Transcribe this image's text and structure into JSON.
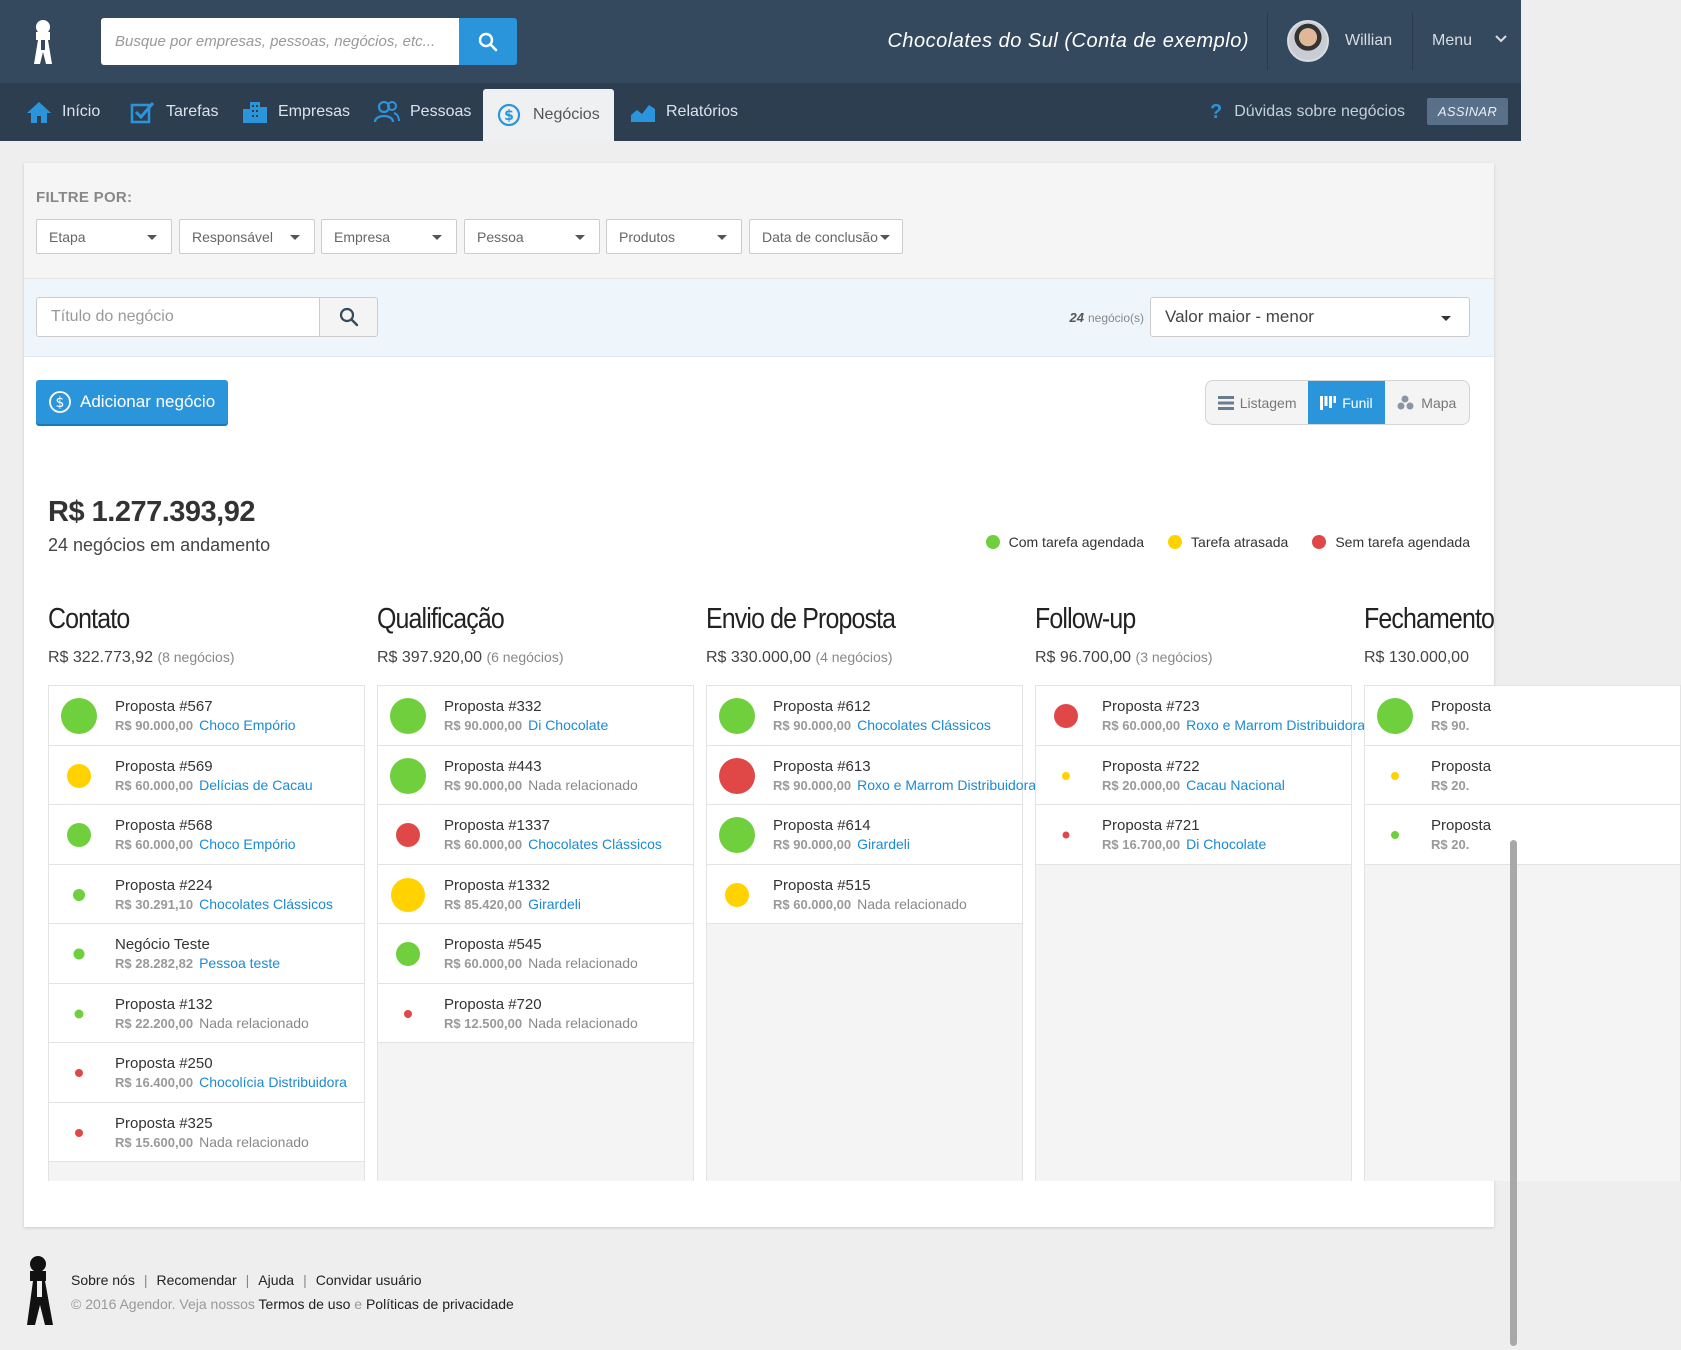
{
  "header": {
    "search_placeholder": "Busque por empresas, pessoas, negócios, etc...",
    "account_name": "Chocolates do Sul (Conta de exemplo)",
    "user_name": "Willian",
    "menu_label": "Menu"
  },
  "nav": {
    "items": [
      {
        "label": "Início",
        "icon": "home-icon"
      },
      {
        "label": "Tarefas",
        "icon": "checkbox-icon"
      },
      {
        "label": "Empresas",
        "icon": "buildings-icon"
      },
      {
        "label": "Pessoas",
        "icon": "people-icon"
      },
      {
        "label": "Negócios",
        "icon": "dollar-icon",
        "active": true
      },
      {
        "label": "Relatórios",
        "icon": "chart-icon"
      }
    ],
    "help_label": "Dúvidas sobre negócios",
    "subscribe_label": "ASSINAR"
  },
  "filters": {
    "title": "FILTRE POR:",
    "items": [
      "Etapa",
      "Responsável",
      "Empresa",
      "Pessoa",
      "Produtos",
      "Data de conclusão"
    ]
  },
  "search": {
    "placeholder": "Título do negócio",
    "count": "24",
    "count_label": "negócio(s)",
    "sort_value": "Valor maior - menor"
  },
  "actions": {
    "add_label": "Adicionar negócio",
    "views": [
      {
        "label": "Listagem",
        "icon": "list-icon",
        "active": false
      },
      {
        "label": "Funil",
        "icon": "funnel-icon",
        "active": true
      },
      {
        "label": "Mapa",
        "icon": "map-icon",
        "active": false
      }
    ]
  },
  "summary": {
    "total": "R$ 1.277.393,92",
    "subtitle": "24 negócios em andamento"
  },
  "legend": [
    {
      "label": "Com tarefa agendada",
      "color": "#6fcf3c"
    },
    {
      "label": "Tarefa atrasada",
      "color": "#ffd200"
    },
    {
      "label": "Sem tarefa agendada",
      "color": "#e04848"
    }
  ],
  "colors": {
    "green": "#6fcf3c",
    "yellow": "#ffd200",
    "red": "#e04848",
    "accent": "#2b95dc"
  },
  "stages": [
    {
      "name": "Contato",
      "value": "R$ 322.773,92",
      "count": "(8 negócios)",
      "deals": [
        {
          "title": "Proposta #567",
          "value": "R$ 90.000,00",
          "related": "Choco Empório",
          "linked": true,
          "status": "green",
          "size": 36
        },
        {
          "title": "Proposta #569",
          "value": "R$ 60.000,00",
          "related": "Delícias de Cacau",
          "linked": true,
          "status": "yellow",
          "size": 24
        },
        {
          "title": "Proposta #568",
          "value": "R$ 60.000,00",
          "related": "Choco Empório",
          "linked": true,
          "status": "green",
          "size": 24
        },
        {
          "title": "Proposta #224",
          "value": "R$ 30.291,10",
          "related": "Chocolates Clássicos",
          "linked": true,
          "status": "green",
          "size": 12
        },
        {
          "title": "Negócio Teste",
          "value": "R$ 28.282,82",
          "related": "Pessoa teste",
          "linked": true,
          "status": "green",
          "size": 11
        },
        {
          "title": "Proposta #132",
          "value": "R$ 22.200,00",
          "related": "Nada relacionado",
          "linked": false,
          "status": "green",
          "size": 9
        },
        {
          "title": "Proposta #250",
          "value": "R$ 16.400,00",
          "related": "Chocolícia Distribuidora",
          "linked": true,
          "status": "red",
          "size": 8
        },
        {
          "title": "Proposta #325",
          "value": "R$ 15.600,00",
          "related": "Nada relacionado",
          "linked": false,
          "status": "red",
          "size": 8
        }
      ]
    },
    {
      "name": "Qualificação",
      "value": "R$ 397.920,00",
      "count": "(6 negócios)",
      "deals": [
        {
          "title": "Proposta #332",
          "value": "R$ 90.000,00",
          "related": "Di Chocolate",
          "linked": true,
          "status": "green",
          "size": 36
        },
        {
          "title": "Proposta #443",
          "value": "R$ 90.000,00",
          "related": "Nada relacionado",
          "linked": false,
          "status": "green",
          "size": 36
        },
        {
          "title": "Proposta #1337",
          "value": "R$ 60.000,00",
          "related": "Chocolates Clássicos",
          "linked": true,
          "status": "red",
          "size": 24
        },
        {
          "title": "Proposta #1332",
          "value": "R$ 85.420,00",
          "related": "Girardeli",
          "linked": true,
          "status": "yellow",
          "size": 34
        },
        {
          "title": "Proposta #545",
          "value": "R$ 60.000,00",
          "related": "Nada relacionado",
          "linked": false,
          "status": "green",
          "size": 24
        },
        {
          "title": "Proposta #720",
          "value": "R$ 12.500,00",
          "related": "Nada relacionado",
          "linked": false,
          "status": "red",
          "size": 8
        }
      ]
    },
    {
      "name": "Envio de Proposta",
      "value": "R$ 330.000,00",
      "count": "(4 negócios)",
      "deals": [
        {
          "title": "Proposta #612",
          "value": "R$ 90.000,00",
          "related": "Chocolates Clássicos",
          "linked": true,
          "status": "green",
          "size": 36
        },
        {
          "title": "Proposta #613",
          "value": "R$ 90.000,00",
          "related": "Roxo e Marrom Distribuidora",
          "linked": true,
          "status": "red",
          "size": 36
        },
        {
          "title": "Proposta #614",
          "value": "R$ 90.000,00",
          "related": "Girardeli",
          "linked": true,
          "status": "green",
          "size": 36
        },
        {
          "title": "Proposta #515",
          "value": "R$ 60.000,00",
          "related": "Nada relacionado",
          "linked": false,
          "status": "yellow",
          "size": 24
        }
      ]
    },
    {
      "name": "Follow-up",
      "value": "R$ 96.700,00",
      "count": "(3 negócios)",
      "deals": [
        {
          "title": "Proposta #723",
          "value": "R$ 60.000,00",
          "related": "Roxo e Marrom Distribuidora",
          "linked": true,
          "status": "red",
          "size": 24
        },
        {
          "title": "Proposta #722",
          "value": "R$ 20.000,00",
          "related": "Cacau Nacional",
          "linked": true,
          "status": "yellow",
          "size": 8
        },
        {
          "title": "Proposta #721",
          "value": "R$ 16.700,00",
          "related": "Di Chocolate",
          "linked": true,
          "status": "red",
          "size": 7
        }
      ]
    },
    {
      "name": "Fechamento",
      "value": "R$ 130.000,00",
      "count": "",
      "deals": [
        {
          "title": "Proposta",
          "value": "R$ 90.",
          "related": "",
          "linked": false,
          "status": "green",
          "size": 36
        },
        {
          "title": "Proposta",
          "value": "R$ 20.",
          "related": "",
          "linked": false,
          "status": "yellow",
          "size": 8
        },
        {
          "title": "Proposta",
          "value": "R$ 20.",
          "related": "",
          "linked": false,
          "status": "green",
          "size": 8
        }
      ]
    }
  ],
  "footer": {
    "links": [
      "Sobre nós",
      "Recomendar",
      "Ajuda",
      "Convidar usuário"
    ],
    "copyright": "© 2016 Agendor. Veja nossos",
    "terms": "Termos de uso",
    "and": "e",
    "privacy": "Políticas de privacidade"
  }
}
